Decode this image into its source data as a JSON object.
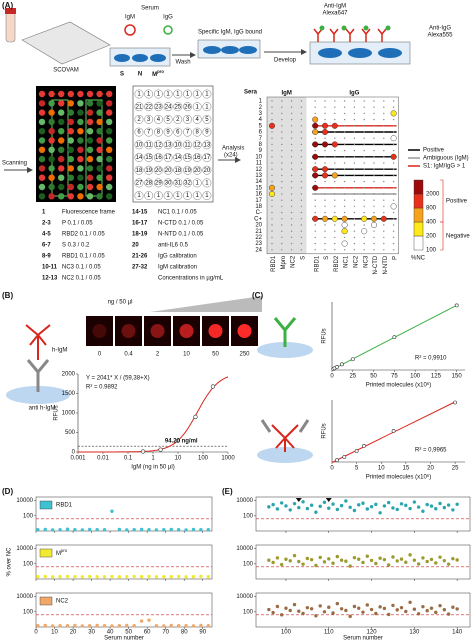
{
  "panel_labels": {
    "a": "(A)",
    "b": "(B)",
    "c": "(C)",
    "d": "(D)",
    "e": "(E)"
  },
  "schematic": {
    "serum": "Serum",
    "igm": "IgM",
    "igg": "IgG",
    "slide": "SCOVAM",
    "wells": [
      "S",
      "N",
      "M"
    ],
    "well_sup": "pro",
    "wash": "Wash",
    "bound": "Specific IgM, IgG bound",
    "develop": "Develop",
    "anti_igm": [
      "Anti-IgM",
      "Alexa647"
    ],
    "anti_igg": [
      "Anti-IgG",
      "Alexa555"
    ],
    "scanning": "Scanning",
    "analysis": [
      "Analysis",
      "(x24)"
    ]
  },
  "spot_map": [
    [
      "1",
      "1",
      "1",
      "1",
      "1",
      "1",
      "1",
      "1"
    ],
    [
      "21",
      "22",
      "23",
      "24",
      "25",
      "26",
      "1",
      "1"
    ],
    [
      "2",
      "3",
      "4",
      "5",
      "2",
      "3",
      "4",
      "5"
    ],
    [
      "6",
      "7",
      "8",
      "9",
      "6",
      "7",
      "8",
      "9"
    ],
    [
      "10",
      "11",
      "12",
      "13",
      "10",
      "11",
      "12",
      "13"
    ],
    [
      "14",
      "15",
      "16",
      "17",
      "14",
      "15",
      "16",
      "17"
    ],
    [
      "18",
      "19",
      "20",
      "20",
      "18",
      "19",
      "20",
      "20"
    ],
    [
      "27",
      "28",
      "29",
      "30",
      "31",
      "32",
      "1",
      "1"
    ],
    [
      "1",
      "1",
      "1",
      "1",
      "1",
      "1",
      "1",
      "1"
    ]
  ],
  "spot_key": [
    [
      "1",
      "Fluorescence frame"
    ],
    [
      "2-3",
      "P 0.1 / 0.05"
    ],
    [
      "4-5",
      "RBD2 0.1 / 0.05"
    ],
    [
      "6-7",
      "S 0.3 / 0.2"
    ],
    [
      "8-9",
      "RBD1 0.1 / 0.05"
    ],
    [
      "10-11",
      "NC3 0.1 / 0.05"
    ],
    [
      "12-13",
      "NC2 0.1 / 0.05"
    ],
    [
      "14-15",
      "NC1 0.1 / 0.05"
    ],
    [
      "16-17",
      "N-CTD 0.1 / 0.05"
    ],
    [
      "18-19",
      "N-NTD 0.1 / 0.05"
    ],
    [
      "20",
      "anti-IL6 0.5"
    ],
    [
      "21-26",
      "IgG calibration"
    ],
    [
      "27-32",
      "IgM calibration"
    ]
  ],
  "spot_key_note": "Concentrations in µg/mL",
  "panel_b": {
    "h_igm": "h-IgM",
    "anti": "anti h-IgM",
    "unit": "ng / 50 µl",
    "concentrations": [
      0,
      0.4,
      2,
      10,
      50,
      250
    ]
  },
  "chart_data": [
    {
      "type": "heatmap",
      "row_title": "Sera",
      "groups": [
        {
          "name": "IgM",
          "columns": [
            "RBD1",
            "Mpro",
            "NC2",
            "S"
          ]
        },
        {
          "name": "IgG",
          "columns": [
            "RBD1",
            "S",
            "RBD2",
            "NC1",
            "NC2",
            "NC3",
            "N-CTD",
            "N-NTD",
            "P"
          ]
        }
      ],
      "rows": [
        "1",
        "2",
        "3",
        "4",
        "5",
        "6",
        "7",
        "8",
        "9",
        "10",
        "11",
        "12",
        "13",
        "14",
        "15",
        "16",
        "17",
        "18",
        "C-",
        "C+",
        "20",
        "21",
        "22",
        "23",
        "24"
      ],
      "row_status": [
        null,
        null,
        null,
        null,
        2,
        0,
        null,
        0,
        null,
        0,
        null,
        0,
        0,
        null,
        2,
        1,
        null,
        null,
        null,
        0,
        null,
        null,
        null,
        null,
        null
      ],
      "values": [
        [
          50,
          50,
          50,
          50,
          50,
          50,
          50,
          50,
          50,
          50,
          50,
          50,
          50
        ],
        [
          50,
          50,
          50,
          50,
          50,
          50,
          50,
          50,
          50,
          50,
          50,
          50,
          50
        ],
        [
          50,
          50,
          50,
          50,
          50,
          50,
          50,
          50,
          50,
          50,
          50,
          50,
          250
        ],
        [
          50,
          50,
          50,
          50,
          450,
          50,
          50,
          50,
          50,
          50,
          50,
          50,
          50
        ],
        [
          900,
          50,
          50,
          50,
          2500,
          1200,
          900,
          50,
          50,
          50,
          50,
          50,
          50
        ],
        [
          50,
          50,
          50,
          50,
          600,
          900,
          50,
          50,
          50,
          50,
          50,
          50,
          50
        ],
        [
          50,
          50,
          50,
          50,
          50,
          50,
          50,
          50,
          50,
          50,
          50,
          50,
          150
        ],
        [
          50,
          50,
          50,
          50,
          3000,
          2200,
          1500,
          50,
          50,
          50,
          50,
          50,
          50
        ],
        [
          50,
          50,
          50,
          50,
          50,
          50,
          50,
          50,
          50,
          50,
          50,
          50,
          50
        ],
        [
          50,
          50,
          50,
          50,
          2500,
          50,
          50,
          50,
          50,
          50,
          50,
          50,
          900
        ],
        [
          50,
          50,
          50,
          50,
          50,
          50,
          50,
          50,
          50,
          50,
          50,
          50,
          50
        ],
        [
          50,
          50,
          50,
          50,
          1500,
          900,
          50,
          50,
          50,
          50,
          50,
          50,
          50
        ],
        [
          50,
          50,
          50,
          50,
          2200,
          1200,
          600,
          50,
          50,
          50,
          50,
          50,
          50
        ],
        [
          50,
          50,
          50,
          50,
          50,
          50,
          50,
          50,
          50,
          50,
          50,
          50,
          50
        ],
        [
          700,
          50,
          50,
          50,
          2500,
          50,
          50,
          50,
          50,
          50,
          50,
          50,
          50
        ],
        [
          300,
          50,
          50,
          50,
          50,
          50,
          50,
          50,
          50,
          50,
          50,
          50,
          50
        ],
        [
          50,
          50,
          50,
          50,
          50,
          50,
          50,
          50,
          50,
          50,
          50,
          50,
          50
        ],
        [
          50,
          50,
          50,
          50,
          50,
          50,
          50,
          50,
          50,
          50,
          50,
          50,
          150
        ],
        [
          50,
          50,
          50,
          50,
          50,
          50,
          50,
          50,
          50,
          50,
          50,
          50,
          50
        ],
        [
          50,
          50,
          50,
          50,
          1500,
          700,
          300,
          450,
          50,
          300,
          600,
          900,
          50
        ],
        [
          50,
          50,
          50,
          50,
          50,
          50,
          50,
          150,
          50,
          50,
          150,
          50,
          50
        ],
        [
          50,
          50,
          50,
          50,
          50,
          50,
          50,
          200,
          50,
          150,
          50,
          50,
          50
        ],
        [
          50,
          50,
          50,
          50,
          50,
          50,
          50,
          50,
          50,
          50,
          50,
          50,
          50
        ],
        [
          50,
          50,
          50,
          50,
          50,
          50,
          50,
          150,
          50,
          50,
          50,
          50,
          50
        ],
        [
          50,
          50,
          50,
          50,
          50,
          50,
          50,
          50,
          50,
          50,
          50,
          50,
          50
        ]
      ],
      "legend": [
        {
          "label": "Positive",
          "color": "#000000"
        },
        {
          "label": "Ambiguous (IgM)",
          "color": "#9a9a9a"
        },
        {
          "label": "S1: IgM/IgG > 1",
          "color": "#d9261c"
        }
      ],
      "color_levels": [
        100,
        200,
        400,
        800,
        2000
      ],
      "colors": [
        "#ffffff",
        "#ffe81a",
        "#f7a21b",
        "#e8311a",
        "#9c0a0a"
      ],
      "colorbar_title": "%NC",
      "bracket_labels": [
        "Positive",
        "Negative"
      ]
    },
    {
      "type": "logfit",
      "x_title": "IgM (ng in 50 µl)",
      "y_title": "RFUs",
      "x": [
        0.4,
        2,
        10,
        50,
        250
      ],
      "values": [
        14,
        60,
        290,
        900,
        1680
      ],
      "xlim": [
        0.001,
        1000
      ],
      "xticks": [
        0.001,
        0.01,
        0.1,
        1,
        10,
        100,
        1000
      ],
      "ylim": [
        0,
        2000
      ],
      "yticks": [
        0,
        500,
        1000,
        1500,
        2000
      ],
      "fit": {
        "vmax": 2041,
        "km": 59.38
      },
      "fit_label": "Y = 2041* X / (59,38+X)",
      "r2_label": "R² = 0.9892",
      "cutoff": 150,
      "cutoff_label": "94.20 ng/ml",
      "color": "#d9261c"
    },
    {
      "type": "scatter",
      "x_title": "Printed molecules (x10⁶)",
      "y_title": "RFUs",
      "x": [
        1.5,
        3,
        6,
        12,
        25,
        75,
        150
      ],
      "values": [
        80,
        150,
        260,
        500,
        950,
        2900,
        5700
      ],
      "xlim": [
        0,
        160
      ],
      "xticks": [
        0,
        25,
        50,
        75,
        100,
        125,
        150
      ],
      "ylim": [
        0,
        6000
      ],
      "r2_label": "R² = 0,9910",
      "color": "#3cb043"
    },
    {
      "type": "scatter",
      "x_title": "Printed molecules (x10⁶)",
      "y_title": "RFUs",
      "x": [
        1,
        2.5,
        5,
        6.5,
        12.5,
        25
      ],
      "values": [
        60,
        160,
        350,
        520,
        1000,
        1920
      ],
      "xlim": [
        0,
        27
      ],
      "xticks": [
        0,
        5,
        10,
        15,
        20,
        25
      ],
      "ylim": [
        0,
        2000
      ],
      "r2_label": "R² = 0,9965",
      "color": "#d9261c"
    },
    {
      "type": "strip",
      "y_title": "% over NC",
      "x_title": "Serum number",
      "ylog": true,
      "ylim": [
        1,
        30000
      ],
      "yticks": [
        100,
        10000
      ],
      "xlim": [
        0,
        95
      ],
      "xticks": [
        0,
        10,
        20,
        30,
        40,
        50,
        60,
        70,
        80,
        90
      ],
      "threshold": 40,
      "x": [
        1,
        5,
        9,
        13,
        17,
        21,
        25,
        29,
        33,
        37,
        41,
        45,
        49,
        53,
        57,
        61,
        65,
        69,
        73,
        77,
        81,
        85,
        89,
        93
      ],
      "series": [
        {
          "name": "RBD1",
          "color": "#3fc1d0",
          "values": [
            1.5,
            1.6,
            1.4,
            1.5,
            1.7,
            1.5,
            1.4,
            1.6,
            1.5,
            1.5,
            400,
            1.6,
            1.4,
            1.5,
            1.6,
            1.5,
            1.4,
            1.5,
            1.6,
            1.5,
            1.4,
            1.6,
            1.5,
            1.5
          ]
        },
        {
          "name": "M",
          "name_superscript": "pro",
          "color": "#f2ea30",
          "values": [
            2,
            2.1,
            1.9,
            2,
            2.2,
            2,
            1.9,
            2.1,
            2,
            2,
            2.1,
            1.9,
            2,
            2.2,
            2,
            2.1,
            1.9,
            2,
            2,
            2.1,
            1.9,
            2,
            2.2,
            2
          ]
        },
        {
          "name": "NC2",
          "color": "#f0a868",
          "values": [
            1.5,
            1.6,
            1.4,
            1.5,
            1.5,
            1.6,
            1.4,
            1.5,
            1.6,
            1.5,
            1.4,
            1.5,
            1.6,
            1.5,
            6,
            8,
            1.5,
            1.4,
            1.6,
            1.5,
            1.5,
            1.4,
            1.6,
            1.5
          ]
        }
      ]
    },
    {
      "type": "strip",
      "x_title": "Serum number",
      "ylog": true,
      "ylim": [
        1,
        30000
      ],
      "yticks": [
        100,
        10000
      ],
      "xlim": [
        93,
        143
      ],
      "xticks": [
        100,
        110,
        120,
        130,
        140
      ],
      "threshold": 40,
      "highlight_x": [
        103,
        110
      ],
      "x": [
        96,
        97,
        98,
        99,
        100,
        101,
        102,
        103,
        104,
        105,
        106,
        107,
        108,
        109,
        110,
        111,
        112,
        113,
        114,
        115,
        116,
        117,
        118,
        119,
        120,
        121,
        122,
        123,
        124,
        125,
        126,
        127,
        128,
        129,
        130,
        131,
        132,
        133,
        134,
        135,
        136,
        137,
        138,
        139,
        140
      ],
      "series": [
        {
          "color": "#2aa5ad",
          "values": [
            1500,
            3000,
            800,
            5000,
            2000,
            600,
            4000,
            1200,
            7000,
            900,
            2500,
            300,
            1800,
            6000,
            1000,
            3500,
            700,
            2200,
            9000,
            1300,
            500,
            2800,
            4500,
            800,
            1600,
            3200,
            250,
            2000,
            5500,
            1100,
            700,
            3800,
            2400,
            900,
            6500,
            1400,
            400,
            3000,
            1900,
            850,
            4200,
            1200,
            2600,
            600,
            3300
          ]
        },
        {
          "color": "#9c9a2e",
          "values": [
            300,
            150,
            600,
            80,
            400,
            250,
            1200,
            200,
            90,
            500,
            350,
            60,
            700,
            180,
            450,
            120,
            900,
            300,
            220,
            50,
            650,
            400,
            150,
            1000,
            280,
            110,
            550,
            350,
            70,
            800,
            240,
            420,
            160,
            1500,
            300,
            95,
            600,
            200,
            380,
            130,
            750,
            260,
            90,
            480,
            320
          ]
        },
        {
          "color": "#9a6c45",
          "values": [
            200,
            80,
            500,
            40,
            300,
            150,
            900,
            120,
            60,
            350,
            250,
            30,
            600,
            100,
            400,
            70,
            1200,
            250,
            150,
            25,
            500,
            300,
            90,
            800,
            200,
            60,
            450,
            280,
            45,
            700,
            180,
            350,
            110,
            1800,
            220,
            55,
            480,
            140,
            300,
            85,
            650,
            190,
            50,
            400,
            240
          ]
        }
      ]
    }
  ]
}
